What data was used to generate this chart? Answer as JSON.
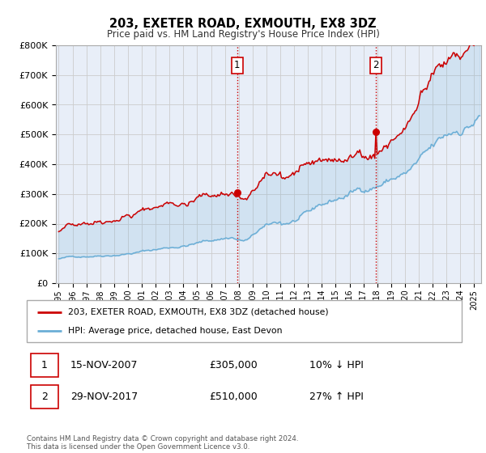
{
  "title": "203, EXETER ROAD, EXMOUTH, EX8 3DZ",
  "subtitle": "Price paid vs. HM Land Registry's House Price Index (HPI)",
  "ylim": [
    0,
    800000
  ],
  "xlim": [
    1994.8,
    2025.5
  ],
  "yticks": [
    0,
    100000,
    200000,
    300000,
    400000,
    500000,
    600000,
    700000,
    800000
  ],
  "ytick_labels": [
    "£0",
    "£100K",
    "£200K",
    "£300K",
    "£400K",
    "£500K",
    "£600K",
    "£700K",
    "£800K"
  ],
  "xticks": [
    1995,
    1996,
    1997,
    1998,
    1999,
    2000,
    2001,
    2002,
    2003,
    2004,
    2005,
    2006,
    2007,
    2008,
    2009,
    2010,
    2011,
    2012,
    2013,
    2014,
    2015,
    2016,
    2017,
    2018,
    2019,
    2020,
    2021,
    2022,
    2023,
    2024,
    2025
  ],
  "hpi_color": "#6baed6",
  "price_color": "#cc0000",
  "vline_color": "#cc0000",
  "grid_color": "#cccccc",
  "bg_color": "#e8eef8",
  "legend_label_price": "203, EXETER ROAD, EXMOUTH, EX8 3DZ (detached house)",
  "legend_label_hpi": "HPI: Average price, detached house, East Devon",
  "sale1_x": 2007.88,
  "sale1_y": 305000,
  "sale1_date": "15-NOV-2007",
  "sale1_price": "£305,000",
  "sale1_hpi": "10% ↓ HPI",
  "sale2_x": 2017.91,
  "sale2_y": 510000,
  "sale2_date": "29-NOV-2017",
  "sale2_price": "£510,000",
  "sale2_hpi": "27% ↑ HPI",
  "footer": "Contains HM Land Registry data © Crown copyright and database right 2024.\nThis data is licensed under the Open Government Licence v3.0.",
  "n_points": 366
}
